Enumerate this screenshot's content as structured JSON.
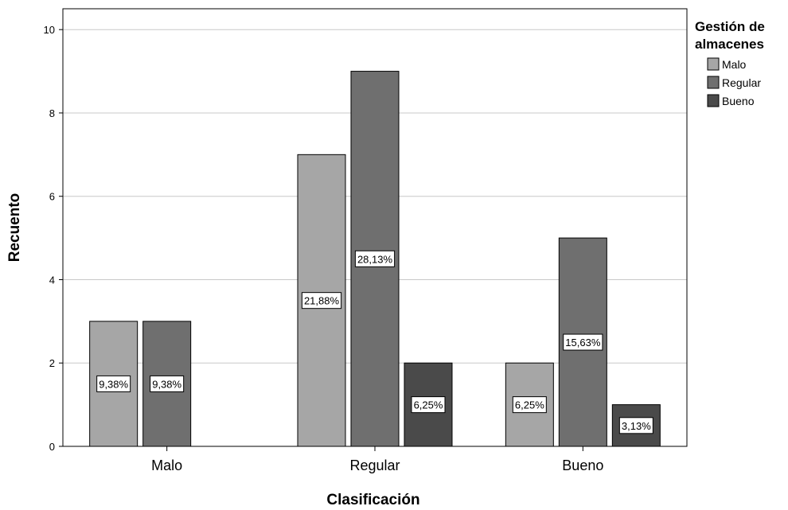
{
  "chart_data": {
    "type": "bar",
    "xlabel": "Clasificación",
    "ylabel": "Recuento",
    "ylim": [
      0,
      10.5
    ],
    "yticks": [
      0,
      2,
      4,
      6,
      8,
      10
    ],
    "categories": [
      "Malo",
      "Regular",
      "Bueno"
    ],
    "legend": {
      "title_line1": "Gestión de",
      "title_line2": "almacenes",
      "placement": "right"
    },
    "grid": true,
    "series": [
      {
        "name": "Malo",
        "color": "#a6a6a6",
        "values": [
          3,
          7,
          2
        ],
        "labels": [
          "9,38%",
          "21,88%",
          "6,25%"
        ]
      },
      {
        "name": "Regular",
        "color": "#6f6f6f",
        "values": [
          3,
          9,
          5
        ],
        "labels": [
          "9,38%",
          "28,13%",
          "15,63%"
        ]
      },
      {
        "name": "Bueno",
        "color": "#4a4a4a",
        "values": [
          null,
          2,
          1
        ],
        "labels": [
          null,
          "6,25%",
          "3,13%"
        ]
      }
    ]
  }
}
